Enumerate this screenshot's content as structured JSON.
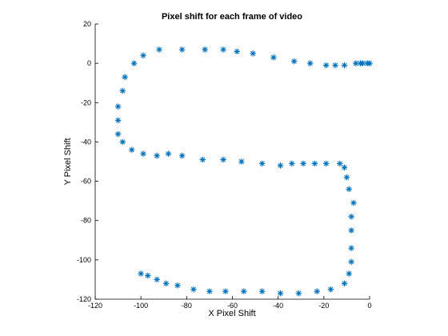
{
  "chart_data": {
    "type": "scatter",
    "title": "Pixel shift for each frame of video",
    "xlabel": "X Pixel Shift",
    "ylabel": "Y Pixel Shift",
    "xlim": [
      -120,
      0
    ],
    "ylim": [
      -120,
      20
    ],
    "x_ticks": [
      -120,
      -100,
      -80,
      -60,
      -40,
      -20,
      0
    ],
    "y_ticks": [
      -120,
      -100,
      -80,
      -60,
      -40,
      -20,
      0,
      20
    ],
    "grid": false,
    "marker": "asterisk",
    "color": "#0072BD",
    "series": [
      {
        "points": [
          [
            0,
            0
          ],
          [
            -1,
            0
          ],
          [
            -3,
            0
          ],
          [
            -4,
            0
          ],
          [
            -6,
            0
          ],
          [
            -11,
            -1
          ],
          [
            -15,
            -1
          ],
          [
            -19,
            -1
          ],
          [
            -26,
            0
          ],
          [
            -33,
            1
          ],
          [
            -42,
            3
          ],
          [
            -51,
            5
          ],
          [
            -58,
            6
          ],
          [
            -64,
            7
          ],
          [
            -72,
            7
          ],
          [
            -82,
            7
          ],
          [
            -92,
            7
          ],
          [
            -99,
            4
          ],
          [
            -103,
            0
          ],
          [
            -107,
            -7
          ],
          [
            -108,
            -14
          ],
          [
            -110,
            -22
          ],
          [
            -110,
            -29
          ],
          [
            -110,
            -36
          ],
          [
            -108,
            -40
          ],
          [
            -104,
            -44
          ],
          [
            -99,
            -46
          ],
          [
            -93,
            -47
          ],
          [
            -88,
            -46
          ],
          [
            -82,
            -47
          ],
          [
            -73,
            -49
          ],
          [
            -64,
            -49
          ],
          [
            -56,
            -50
          ],
          [
            -47,
            -51
          ],
          [
            -39,
            -52
          ],
          [
            -34,
            -51
          ],
          [
            -29,
            -51
          ],
          [
            -24,
            -51
          ],
          [
            -19,
            -51
          ],
          [
            -13,
            -51
          ],
          [
            -11,
            -53
          ],
          [
            -10,
            -58
          ],
          [
            -9,
            -64
          ],
          [
            -7,
            -71
          ],
          [
            -8,
            -78
          ],
          [
            -8,
            -85
          ],
          [
            -8,
            -94
          ],
          [
            -8,
            -101
          ],
          [
            -9,
            -107
          ],
          [
            -11,
            -112
          ],
          [
            -17,
            -115
          ],
          [
            -23,
            -116
          ],
          [
            -31,
            -117
          ],
          [
            -39,
            -117
          ],
          [
            -47,
            -116
          ],
          [
            -55,
            -116
          ],
          [
            -63,
            -116
          ],
          [
            -70,
            -116
          ],
          [
            -77,
            -115
          ],
          [
            -84,
            -113
          ],
          [
            -89,
            -112
          ],
          [
            -93,
            -110
          ],
          [
            -97,
            -108
          ],
          [
            -100,
            -107
          ]
        ]
      }
    ]
  }
}
